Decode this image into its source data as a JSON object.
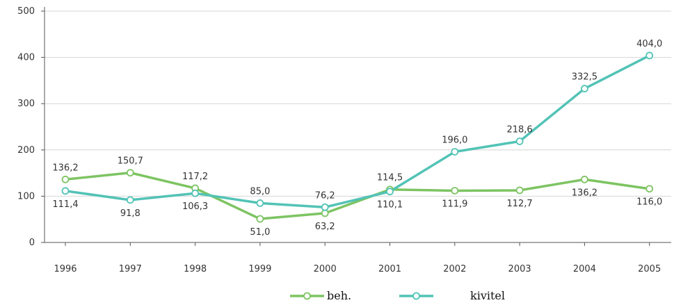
{
  "chart_data": {
    "type": "line",
    "categories": [
      "1996",
      "1997",
      "1998",
      "1999",
      "2000",
      "2001",
      "2002",
      "2003",
      "2004",
      "2005"
    ],
    "series": [
      {
        "name": "beh.",
        "color": "#7dc462",
        "values": [
          136.2,
          150.7,
          117.2,
          51.0,
          63.2,
          114.5,
          111.9,
          112.7,
          136.2,
          116.0
        ],
        "labels": [
          "136,2",
          "150,7",
          "117,2",
          "51,0",
          "63,2",
          "114,5",
          "111,9",
          "112,7",
          "136,2",
          "116,0"
        ]
      },
      {
        "name": "kivitel",
        "color": "#52c3b6",
        "values": [
          111.4,
          91.8,
          106.3,
          85.0,
          76.2,
          110.1,
          196.0,
          218.6,
          332.5,
          404.0
        ],
        "labels": [
          "111,4",
          "91,8",
          "106,3",
          "85,0",
          "76,2",
          "110,1",
          "196,0",
          "218,6",
          "332,5",
          "404,0"
        ]
      }
    ],
    "y_ticks": [
      "0",
      "100",
      "200",
      "300",
      "400",
      "500"
    ],
    "ylim": [
      0,
      500
    ],
    "grid": "horizontal",
    "gridline_color": "#d6d6d6",
    "legend_position": "bottom-center"
  }
}
